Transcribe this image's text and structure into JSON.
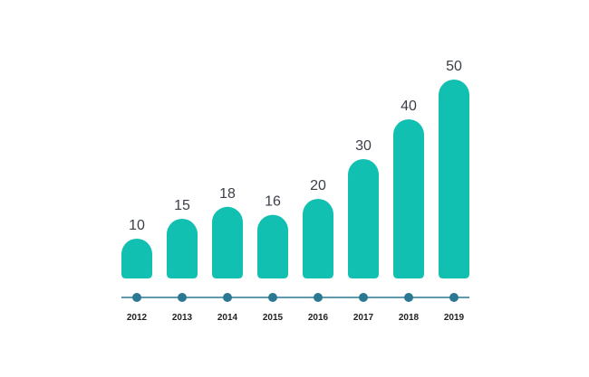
{
  "chart_data": {
    "type": "bar",
    "categories": [
      "2012",
      "2013",
      "2014",
      "2015",
      "2016",
      "2017",
      "2018",
      "2019"
    ],
    "values": [
      10,
      15,
      18,
      16,
      20,
      30,
      40,
      50
    ],
    "title": "",
    "xlabel": "",
    "ylabel": "",
    "ylim": [
      0,
      50
    ],
    "grid": false,
    "data_labels": true,
    "colors": {
      "bar": "#12c0b2",
      "timeline": "#2a7891",
      "label_text": "#3a3f47",
      "year_text": "#222222"
    }
  }
}
